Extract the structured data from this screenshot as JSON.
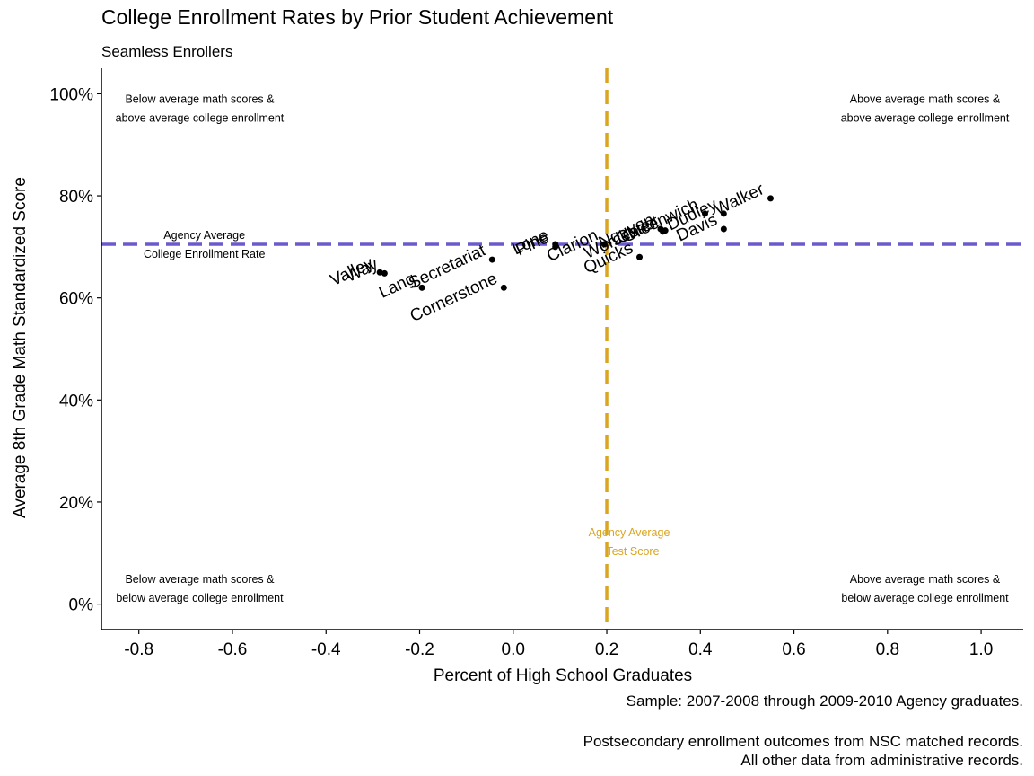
{
  "chart_data": {
    "type": "scatter",
    "title": "College Enrollment Rates by Prior Student Achievement",
    "subtitle": "Seamless Enrollers",
    "xlabel": "Percent of High School Graduates",
    "ylabel": "Average 8th Grade Math Standardized Score",
    "xlim": [
      -0.88,
      1.09
    ],
    "ylim": [
      -0.05,
      1.05
    ],
    "x_ticks": [
      -0.8,
      -0.6,
      -0.4,
      -0.2,
      0.0,
      0.2,
      0.4,
      0.6,
      0.8,
      1.0
    ],
    "x_tick_labels": [
      "-0.8",
      "-0.6",
      "-0.4",
      "-0.2",
      "0.0",
      "0.2",
      "0.4",
      "0.6",
      "0.8",
      "1.0"
    ],
    "y_ticks": [
      0,
      0.2,
      0.4,
      0.6,
      0.8,
      1.0
    ],
    "y_tick_labels": [
      "0%",
      "20%",
      "40%",
      "60%",
      "80%",
      "100%"
    ],
    "grid": false,
    "points": [
      {
        "label": "Valley",
        "x": -0.285,
        "y": 0.65
      },
      {
        "label": "Way",
        "x": -0.275,
        "y": 0.648
      },
      {
        "label": "Lang",
        "x": -0.195,
        "y": 0.62
      },
      {
        "label": "Secretariat",
        "x": -0.045,
        "y": 0.675
      },
      {
        "label": "Cornerstone",
        "x": -0.02,
        "y": 0.62
      },
      {
        "label": "Lone",
        "x": 0.09,
        "y": 0.705
      },
      {
        "label": "Pine",
        "x": 0.09,
        "y": 0.7
      },
      {
        "label": "Clarion",
        "x": 0.195,
        "y": 0.705
      },
      {
        "label": "Quicks",
        "x": 0.27,
        "y": 0.68
      },
      {
        "label": "Nguyen",
        "x": 0.315,
        "y": 0.735
      },
      {
        "label": "Worcester",
        "x": 0.32,
        "y": 0.73
      },
      {
        "label": "Christ",
        "x": 0.325,
        "y": 0.732
      },
      {
        "label": "Greenwich",
        "x": 0.41,
        "y": 0.765
      },
      {
        "label": "Dudley",
        "x": 0.45,
        "y": 0.765
      },
      {
        "label": "Davis",
        "x": 0.45,
        "y": 0.735
      },
      {
        "label": "Walker",
        "x": 0.55,
        "y": 0.795
      }
    ],
    "reference_lines": [
      {
        "orientation": "horizontal",
        "y": 0.705,
        "color": "#6a5acd",
        "style": "dashed",
        "label": [
          "Agency Average",
          "College Enrollment Rate"
        ]
      },
      {
        "orientation": "vertical",
        "x": 0.2,
        "color": "#daa520",
        "style": "dashed",
        "label": [
          "Agency Average",
          "Test Score"
        ]
      }
    ],
    "quadrant_annotations": [
      {
        "position": "top-left",
        "lines": [
          "Below average math scores &",
          "above average college enrollment"
        ]
      },
      {
        "position": "top-right",
        "lines": [
          "Above average math scores &",
          "above average college enrollment"
        ]
      },
      {
        "position": "bottom-left",
        "lines": [
          "Below average math scores &",
          "below average college enrollment"
        ]
      },
      {
        "position": "bottom-right",
        "lines": [
          "Above average math scores &",
          "below average college enrollment"
        ]
      }
    ]
  },
  "caption": {
    "sample": "Sample: 2007-2008 through 2009-2010 Agency graduates.",
    "nsc": "Postsecondary enrollment outcomes from NSC matched records.",
    "admin": "All other data from administrative records."
  },
  "colors": {
    "enrollment_line": "#6a5acd",
    "test_score_line": "#daa520",
    "points": "#000000"
  }
}
